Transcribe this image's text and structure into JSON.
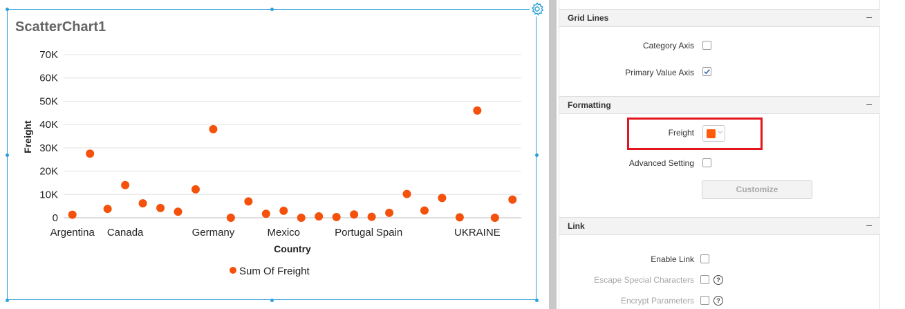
{
  "chart": {
    "title": "ScatterChart1",
    "legend_label": "Sum Of Freight",
    "accent_color": "#f4510c",
    "selection_color": "#2b9fd6"
  },
  "chart_data": {
    "type": "scatter",
    "title": "ScatterChart1",
    "xlabel": "Country",
    "ylabel": "Freight",
    "ylim": [
      0,
      70000
    ],
    "y_ticks": [
      0,
      10000,
      20000,
      30000,
      40000,
      50000,
      60000,
      70000
    ],
    "y_tick_labels": [
      "0",
      "10K",
      "20K",
      "30K",
      "40K",
      "50K",
      "60K",
      "70K"
    ],
    "visible_category_labels": [
      "Argentina",
      "Canada",
      "Germany",
      "Mexico",
      "Portugal",
      "Spain",
      "UKRAINE"
    ],
    "label_indices": [
      0,
      3,
      8,
      12,
      16,
      18,
      23
    ],
    "grid": true,
    "legend_position": "bottom",
    "series": [
      {
        "name": "Sum Of Freight",
        "color": "#f4510c",
        "values": [
          1300,
          27500,
          3800,
          14000,
          6200,
          4200,
          2600,
          12200,
          38000,
          0,
          7000,
          1700,
          3000,
          0,
          600,
          300,
          1400,
          400,
          2100,
          10200,
          3100,
          8500,
          200,
          46000,
          0,
          7800
        ]
      }
    ]
  },
  "panel": {
    "sections": {
      "grid_lines": {
        "title": "Grid Lines",
        "collapse": "–"
      },
      "formatting": {
        "title": "Formatting",
        "collapse": "–"
      },
      "link": {
        "title": "Link",
        "collapse": "–"
      }
    },
    "grid_lines": {
      "category_axis_label": "Category Axis",
      "primary_value_axis_label": "Primary Value Axis"
    },
    "formatting": {
      "freight_label": "Freight",
      "freight_color": "#ff5a0a",
      "advanced_setting_label": "Advanced Setting",
      "customize_label": "Customize"
    },
    "link": {
      "enable_link_label": "Enable Link",
      "escape_label": "Escape Special Characters",
      "encrypt_label": "Encrypt Parameters",
      "help_glyph": "?"
    }
  }
}
